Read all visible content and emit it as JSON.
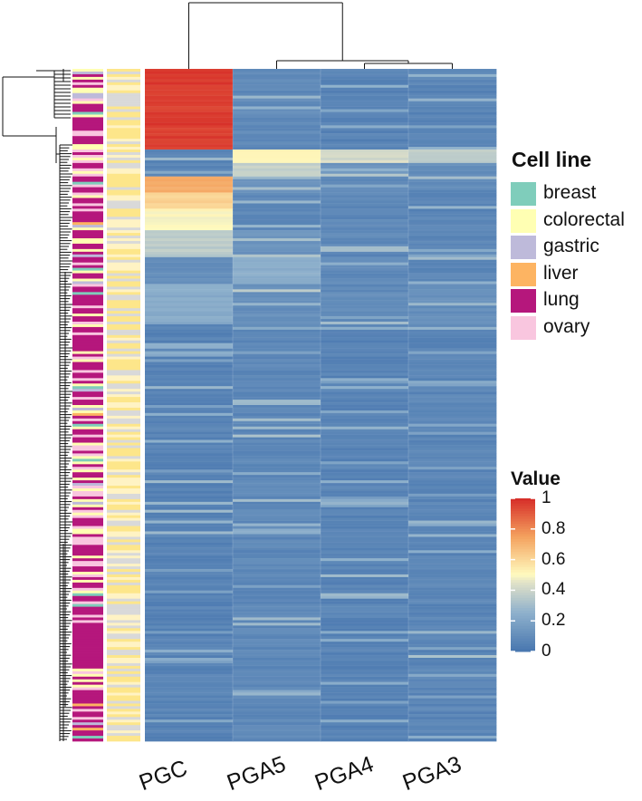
{
  "palette": {
    "breast": "#7fcdbb",
    "colorectal": "#ffffb3",
    "gastric": "#bebada",
    "liver": "#fdb462",
    "lung": "#b5177c",
    "ovary": "#f9c6df",
    "annot2_yellow": "#fde68a",
    "annot2_grey": "#d9d9d9",
    "value_low": "#4a78b0",
    "value_mid": "#fffbbf",
    "value_high": "#d7302a"
  },
  "legend": {
    "title": "Cell line",
    "items": [
      {
        "label": "breast",
        "color": "#7fcdbb"
      },
      {
        "label": "colorectal",
        "color": "#ffffb3"
      },
      {
        "label": "gastric",
        "color": "#bebada"
      },
      {
        "label": "liver",
        "color": "#fdb462"
      },
      {
        "label": "lung",
        "color": "#b5177c"
      },
      {
        "label": "ovary",
        "color": "#f9c6df"
      }
    ]
  },
  "chart_data": {
    "type": "heatmap",
    "title": "",
    "columns": [
      "PGC",
      "PGA5",
      "PGA4",
      "PGA3"
    ],
    "column_dendrogram": "PGC separate from cluster (PGA5, (PGA4, PGA3))",
    "row_count": 250,
    "value_range": [
      0,
      1
    ],
    "colorbar": {
      "title": "Value",
      "ticks": [
        "1",
        "0.8",
        "0.6",
        "0.4",
        "0.2",
        "0"
      ]
    },
    "row_blocks": [
      {
        "rows": 30,
        "PGC": 0.97,
        "PGA5": 0.08,
        "PGA4": 0.05,
        "PGA3": 0.06
      },
      {
        "rows": 5,
        "PGC": 0.05,
        "PGA5": 0.5,
        "PGA4": 0.42,
        "PGA3": 0.35
      },
      {
        "rows": 5,
        "PGC": 0.05,
        "PGA5": 0.38,
        "PGA4": 0.12,
        "PGA3": 0.1
      },
      {
        "rows": 6,
        "PGC": 0.72,
        "PGA5": 0.1,
        "PGA4": 0.08,
        "PGA3": 0.07
      },
      {
        "rows": 6,
        "PGC": 0.62,
        "PGA5": 0.08,
        "PGA4": 0.07,
        "PGA3": 0.07
      },
      {
        "rows": 8,
        "PGC": 0.5,
        "PGA5": 0.08,
        "PGA4": 0.07,
        "PGA3": 0.06
      },
      {
        "rows": 10,
        "PGC": 0.36,
        "PGA5": 0.12,
        "PGA4": 0.07,
        "PGA3": 0.07
      },
      {
        "rows": 10,
        "PGC": 0.1,
        "PGA5": 0.24,
        "PGA4": 0.08,
        "PGA3": 0.06
      },
      {
        "rows": 15,
        "PGC": 0.22,
        "PGA5": 0.1,
        "PGA4": 0.08,
        "PGA3": 0.1
      },
      {
        "rows": 155,
        "PGC": 0.05,
        "PGA5": 0.07,
        "PGA4": 0.05,
        "PGA3": 0.06
      }
    ]
  }
}
